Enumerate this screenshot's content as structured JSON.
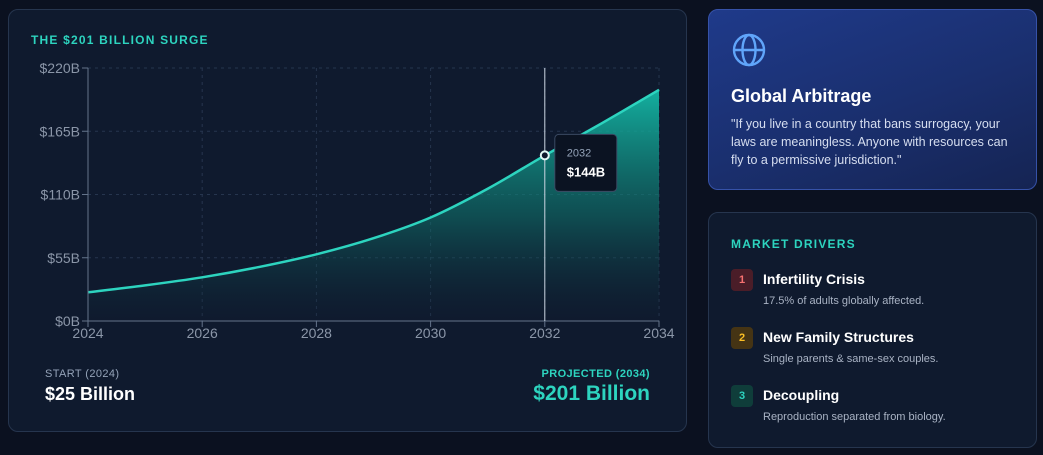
{
  "chart_card": {
    "title": "THE $201 BILLION SURGE",
    "start_label": "START (2024)",
    "start_value": "$25 Billion",
    "projected_label": "PROJECTED (2034)",
    "projected_value": "$201 Billion"
  },
  "chart_data": {
    "type": "area",
    "x": [
      2024,
      2025,
      2026,
      2027,
      2028,
      2029,
      2030,
      2031,
      2032,
      2033,
      2034
    ],
    "values": [
      25,
      31,
      38,
      47,
      58,
      72,
      90,
      115,
      144,
      172,
      201
    ],
    "x_ticks": [
      "2024",
      "2026",
      "2028",
      "2030",
      "2032",
      "2034"
    ],
    "y_ticks": [
      "$0B",
      "$55B",
      "$110B",
      "$165B",
      "$220B"
    ],
    "xlim": [
      2024,
      2034
    ],
    "ylim": [
      0,
      220
    ],
    "grid": true,
    "tooltip": {
      "x": 2032,
      "year": "2032",
      "value": "$144B"
    },
    "colors": {
      "line": "#2dd4bf",
      "fill_top": "#14b8a6",
      "fill_bottom": "#0f1a2e"
    }
  },
  "arbitrage": {
    "icon": "globe-icon",
    "title": "Global Arbitrage",
    "quote": "\"If you live in a country that bans surrogacy, your laws are meaningless. Anyone with resources can fly to a permissive jurisdiction.\""
  },
  "drivers": {
    "title": "MARKET DRIVERS",
    "items": [
      {
        "num": "1",
        "name": "Infertility Crisis",
        "desc": "17.5% of adults globally affected.",
        "badge_bg": "#4a1d28",
        "badge_fg": "#f87171"
      },
      {
        "num": "2",
        "name": "New Family Structures",
        "desc": "Single parents & same-sex couples.",
        "badge_bg": "#453414",
        "badge_fg": "#fbbf24"
      },
      {
        "num": "3",
        "name": "Decoupling",
        "desc": "Reproduction separated from biology.",
        "badge_bg": "#0f3d3a",
        "badge_fg": "#2dd4bf"
      }
    ]
  }
}
